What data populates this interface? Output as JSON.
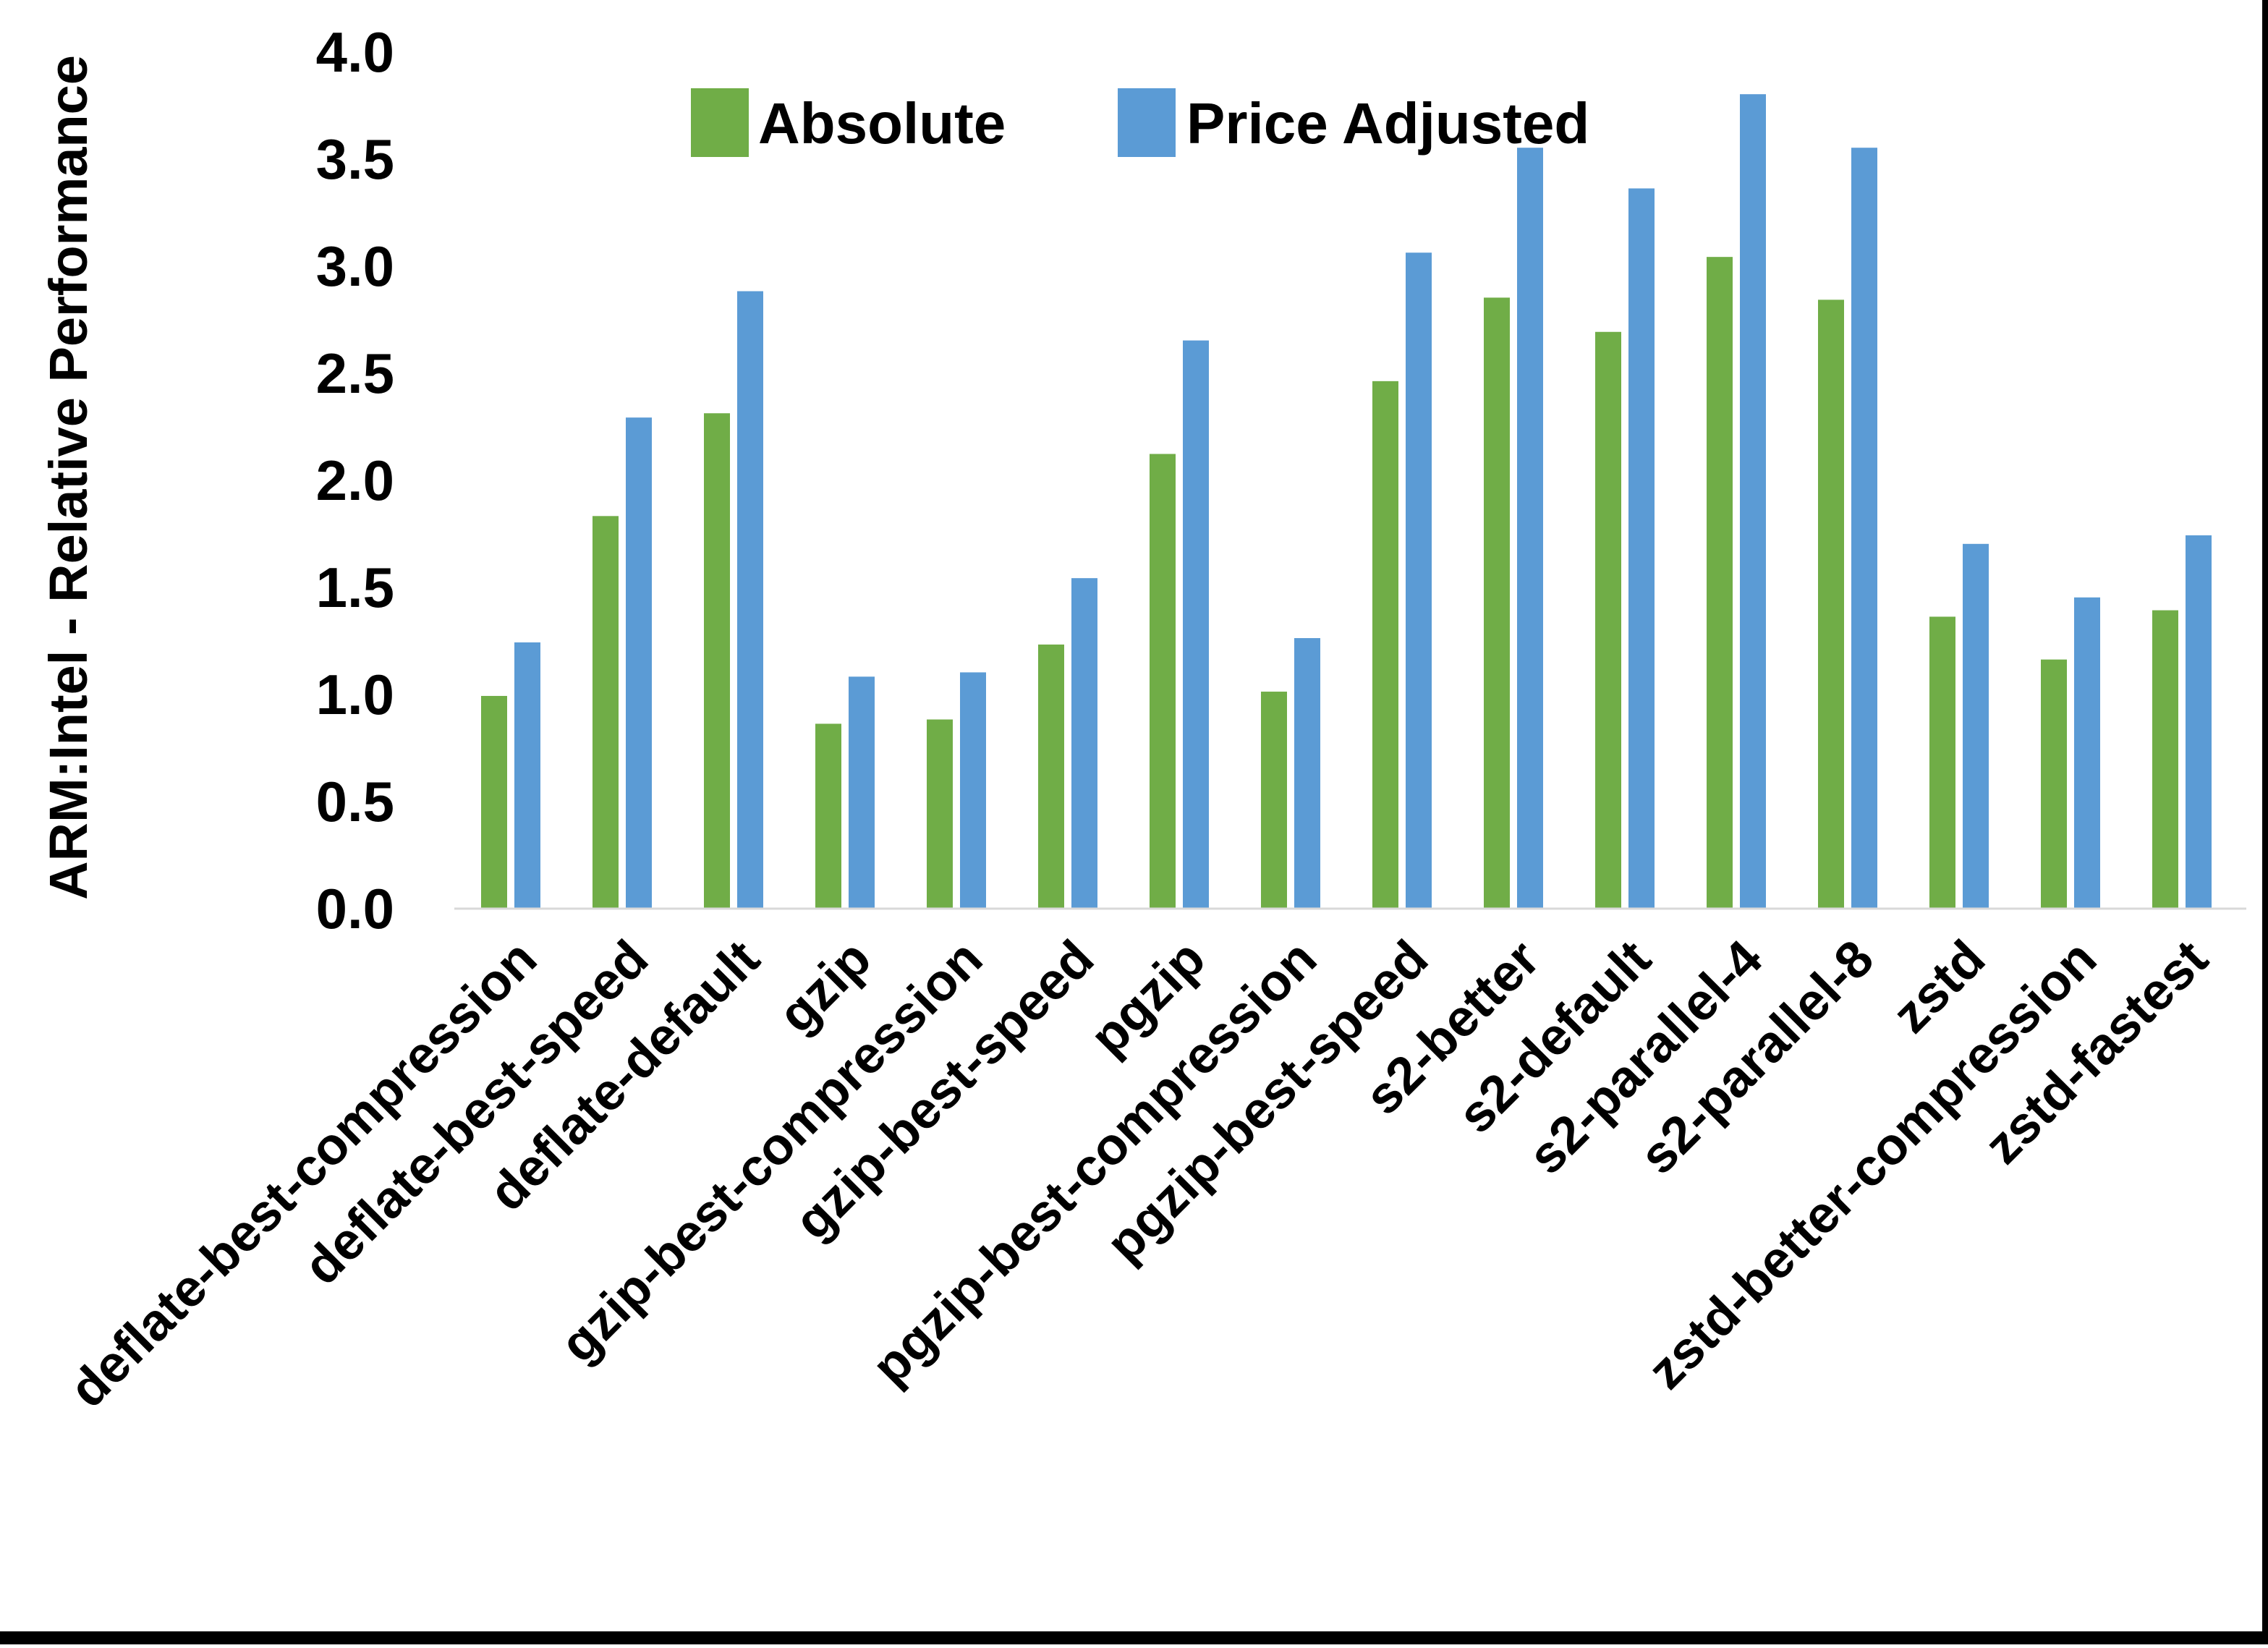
{
  "chart_data": {
    "type": "bar",
    "title": "",
    "xlabel": "",
    "ylabel": "ARM:Intel - Relative Performance",
    "ylim": [
      0.0,
      4.0
    ],
    "ytick_step": 0.5,
    "ytick_labels": [
      "0.0",
      "0.5",
      "1.0",
      "1.5",
      "2.0",
      "2.5",
      "3.0",
      "3.5",
      "4.0"
    ],
    "grid": false,
    "legend_position": "top-center",
    "categories": [
      "deflate-best-compression",
      "deflate-best-speed",
      "deflate-default",
      "gzip",
      "gzip-best-compression",
      "gzip-best-speed",
      "pgzip",
      "pgzip-best-compression",
      "pgzip-best-speed",
      "s2-better",
      "s2-default",
      "s2-parallel-4",
      "s2-parallel-8",
      "zstd",
      "zstd-better-compression",
      "zstd-fastest"
    ],
    "series": [
      {
        "name": "Absolute",
        "color": "#70AD47",
        "values": [
          0.99,
          1.83,
          2.31,
          0.86,
          0.88,
          1.23,
          2.12,
          1.01,
          2.46,
          2.85,
          2.69,
          3.04,
          2.84,
          1.36,
          1.16,
          1.39
        ]
      },
      {
        "name": "Price Adjusted",
        "color": "#5B9BD5",
        "values": [
          1.24,
          2.29,
          2.88,
          1.08,
          1.1,
          1.54,
          2.65,
          1.26,
          3.06,
          3.55,
          3.36,
          3.8,
          3.55,
          1.7,
          1.45,
          1.74
        ]
      }
    ],
    "axis_line_color": "#D9D9D9",
    "frame_edge_color": "#000000"
  }
}
